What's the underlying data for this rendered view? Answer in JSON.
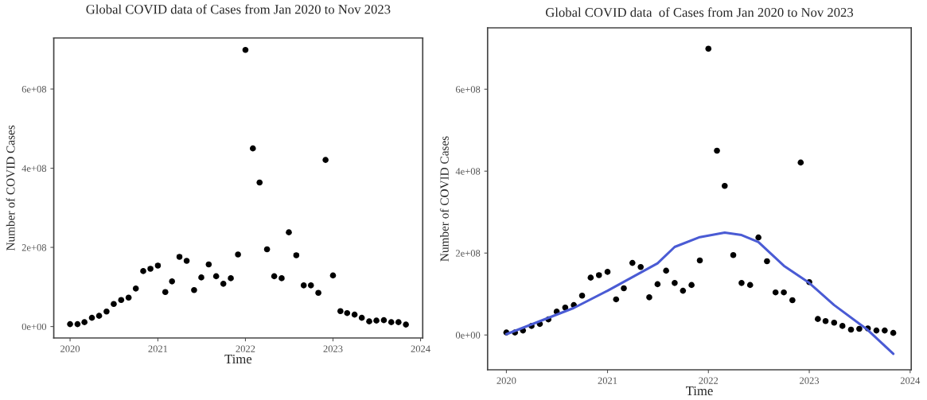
{
  "chart_data": [
    {
      "type": "scatter",
      "title": "Global COVID data of Cases from Jan 2020 to Nov 2023",
      "xlabel": "Time",
      "ylabel": "Number of COVID Cases",
      "x": [
        "2020-01",
        "2020-02",
        "2020-03",
        "2020-04",
        "2020-05",
        "2020-06",
        "2020-07",
        "2020-08",
        "2020-09",
        "2020-10",
        "2020-11",
        "2020-12",
        "2021-01",
        "2021-02",
        "2021-03",
        "2021-04",
        "2021-05",
        "2021-06",
        "2021-07",
        "2021-08",
        "2021-09",
        "2021-10",
        "2021-11",
        "2021-12",
        "2022-01",
        "2022-02",
        "2022-03",
        "2022-04",
        "2022-05",
        "2022-06",
        "2022-07",
        "2022-08",
        "2022-09",
        "2022-10",
        "2022-11",
        "2022-12",
        "2023-01",
        "2023-02",
        "2023-03",
        "2023-04",
        "2023-05",
        "2023-06",
        "2023-07",
        "2023-08",
        "2023-09",
        "2023-10",
        "2023-11"
      ],
      "series": [
        {
          "color": "#000000",
          "values": [
            6000000,
            6000000,
            11000000,
            22000000,
            27000000,
            38000000,
            57000000,
            67000000,
            73000000,
            96000000,
            140000000,
            146000000,
            154000000,
            87000000,
            114000000,
            176000000,
            166000000,
            92000000,
            124000000,
            157000000,
            127000000,
            108000000,
            122000000,
            182000000,
            699000000,
            450000000,
            364000000,
            195000000,
            127000000,
            122000000,
            238000000,
            180000000,
            104000000,
            104000000,
            85000000,
            421000000,
            129000000,
            39000000,
            34000000,
            30000000,
            22000000,
            13000000,
            15000000,
            16000000,
            11000000,
            11000000,
            5000000
          ]
        }
      ],
      "xlim": [
        "2019-10-25",
        "2024-01-10"
      ],
      "xticks": [
        {
          "value": "2020-01-01",
          "label": "2020"
        },
        {
          "value": "2021-01-01",
          "label": "2021"
        },
        {
          "value": "2022-01-01",
          "label": "2022"
        },
        {
          "value": "2023-01-01",
          "label": "2023"
        },
        {
          "value": "2024-01-01",
          "label": "2024"
        }
      ],
      "ylim": [
        -29000000,
        729000000
      ],
      "yticks": [
        {
          "value": 0,
          "label": "0e+00"
        },
        {
          "value": 200000000,
          "label": "2e+08"
        },
        {
          "value": 400000000,
          "label": "4e+08"
        },
        {
          "value": 600000000,
          "label": "6e+08"
        }
      ],
      "marker": "circle",
      "grid": false,
      "legend": false
    },
    {
      "type": "scatter",
      "title": "Global COVID data  of Cases from Jan 2020 to Nov 2023",
      "xlabel": "Time",
      "ylabel": "Number of COVID Cases",
      "x": [
        "2020-01",
        "2020-02",
        "2020-03",
        "2020-04",
        "2020-05",
        "2020-06",
        "2020-07",
        "2020-08",
        "2020-09",
        "2020-10",
        "2020-11",
        "2020-12",
        "2021-01",
        "2021-02",
        "2021-03",
        "2021-04",
        "2021-05",
        "2021-06",
        "2021-07",
        "2021-08",
        "2021-09",
        "2021-10",
        "2021-11",
        "2021-12",
        "2022-01",
        "2022-02",
        "2022-03",
        "2022-04",
        "2022-05",
        "2022-06",
        "2022-07",
        "2022-08",
        "2022-09",
        "2022-10",
        "2022-11",
        "2022-12",
        "2023-01",
        "2023-02",
        "2023-03",
        "2023-04",
        "2023-05",
        "2023-06",
        "2023-07",
        "2023-08",
        "2023-09",
        "2023-10",
        "2023-11"
      ],
      "series": [
        {
          "color": "#000000",
          "values": [
            6000000,
            6000000,
            11000000,
            22000000,
            27000000,
            38000000,
            57000000,
            67000000,
            73000000,
            96000000,
            140000000,
            146000000,
            154000000,
            87000000,
            114000000,
            176000000,
            166000000,
            92000000,
            124000000,
            157000000,
            127000000,
            108000000,
            122000000,
            182000000,
            699000000,
            450000000,
            364000000,
            195000000,
            127000000,
            122000000,
            238000000,
            180000000,
            104000000,
            104000000,
            85000000,
            421000000,
            129000000,
            39000000,
            34000000,
            30000000,
            22000000,
            13000000,
            15000000,
            16000000,
            11000000,
            11000000,
            5000000
          ]
        },
        {
          "type": "line",
          "color": "#4a5bd4",
          "marker": "none",
          "x": [
            "2020-01",
            "2020-09",
            "2021-01",
            "2021-07",
            "2021-09",
            "2021-12",
            "2022-03",
            "2022-05",
            "2022-07",
            "2022-10",
            "2023-01",
            "2023-04",
            "2023-08",
            "2023-11"
          ],
          "values": [
            2000000,
            66000000,
            108000000,
            175000000,
            215000000,
            239000000,
            250000000,
            244000000,
            227000000,
            169000000,
            127000000,
            73000000,
            12000000,
            -46000000
          ]
        }
      ],
      "xlim": [
        "2019-10-25",
        "2024-01-05"
      ],
      "xticks": [
        {
          "value": "2020-01-01",
          "label": "2020"
        },
        {
          "value": "2021-01-01",
          "label": "2021"
        },
        {
          "value": "2022-01-01",
          "label": "2022"
        },
        {
          "value": "2023-01-01",
          "label": "2023"
        },
        {
          "value": "2024-01-01",
          "label": "2024"
        }
      ],
      "ylim": [
        -85000000,
        750000000
      ],
      "yticks": [
        {
          "value": 0,
          "label": "0e+00"
        },
        {
          "value": 200000000,
          "label": "2e+08"
        },
        {
          "value": 400000000,
          "label": "4e+08"
        },
        {
          "value": 600000000,
          "label": "6e+08"
        }
      ],
      "marker": "circle",
      "grid": false,
      "legend": false
    }
  ]
}
